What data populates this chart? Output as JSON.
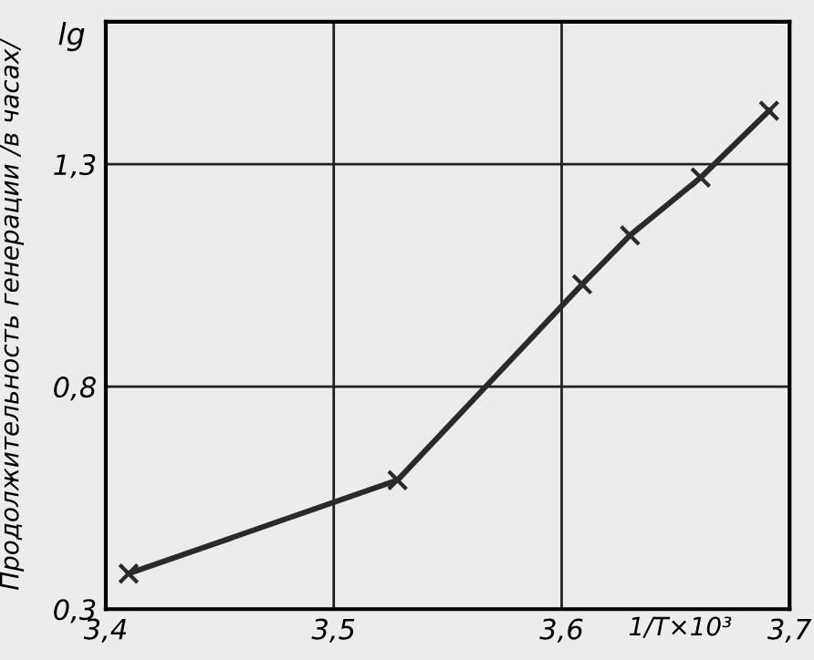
{
  "chart_data": {
    "type": "line",
    "xlabel": "1/T×10³",
    "ylabel": "Продолжительность генерации /в часах/",
    "annotations": [
      "lg"
    ],
    "x": [
      3.41,
      3.528,
      3.609,
      3.63,
      3.661,
      3.691
    ],
    "series": [
      {
        "color": "#2a2a2a",
        "values": [
          0.38,
          0.59,
          1.03,
          1.14,
          1.27,
          1.42
        ]
      }
    ],
    "xlim": [
      3.4,
      3.7
    ],
    "ylim": [
      0.3,
      1.62
    ],
    "xticks": [
      {
        "value": 3.4,
        "label": "3,4"
      },
      {
        "value": 3.5,
        "label": "3,5"
      },
      {
        "value": 3.6,
        "label": "3,6"
      },
      {
        "value": 3.7,
        "label": "3,7"
      }
    ],
    "yticks": [
      {
        "value": 0.3,
        "label": "0,3"
      },
      {
        "value": 0.8,
        "label": "0,8"
      },
      {
        "value": 1.3,
        "label": "1,3"
      }
    ],
    "grid": true,
    "marker": "cross",
    "line_style": "solid"
  }
}
